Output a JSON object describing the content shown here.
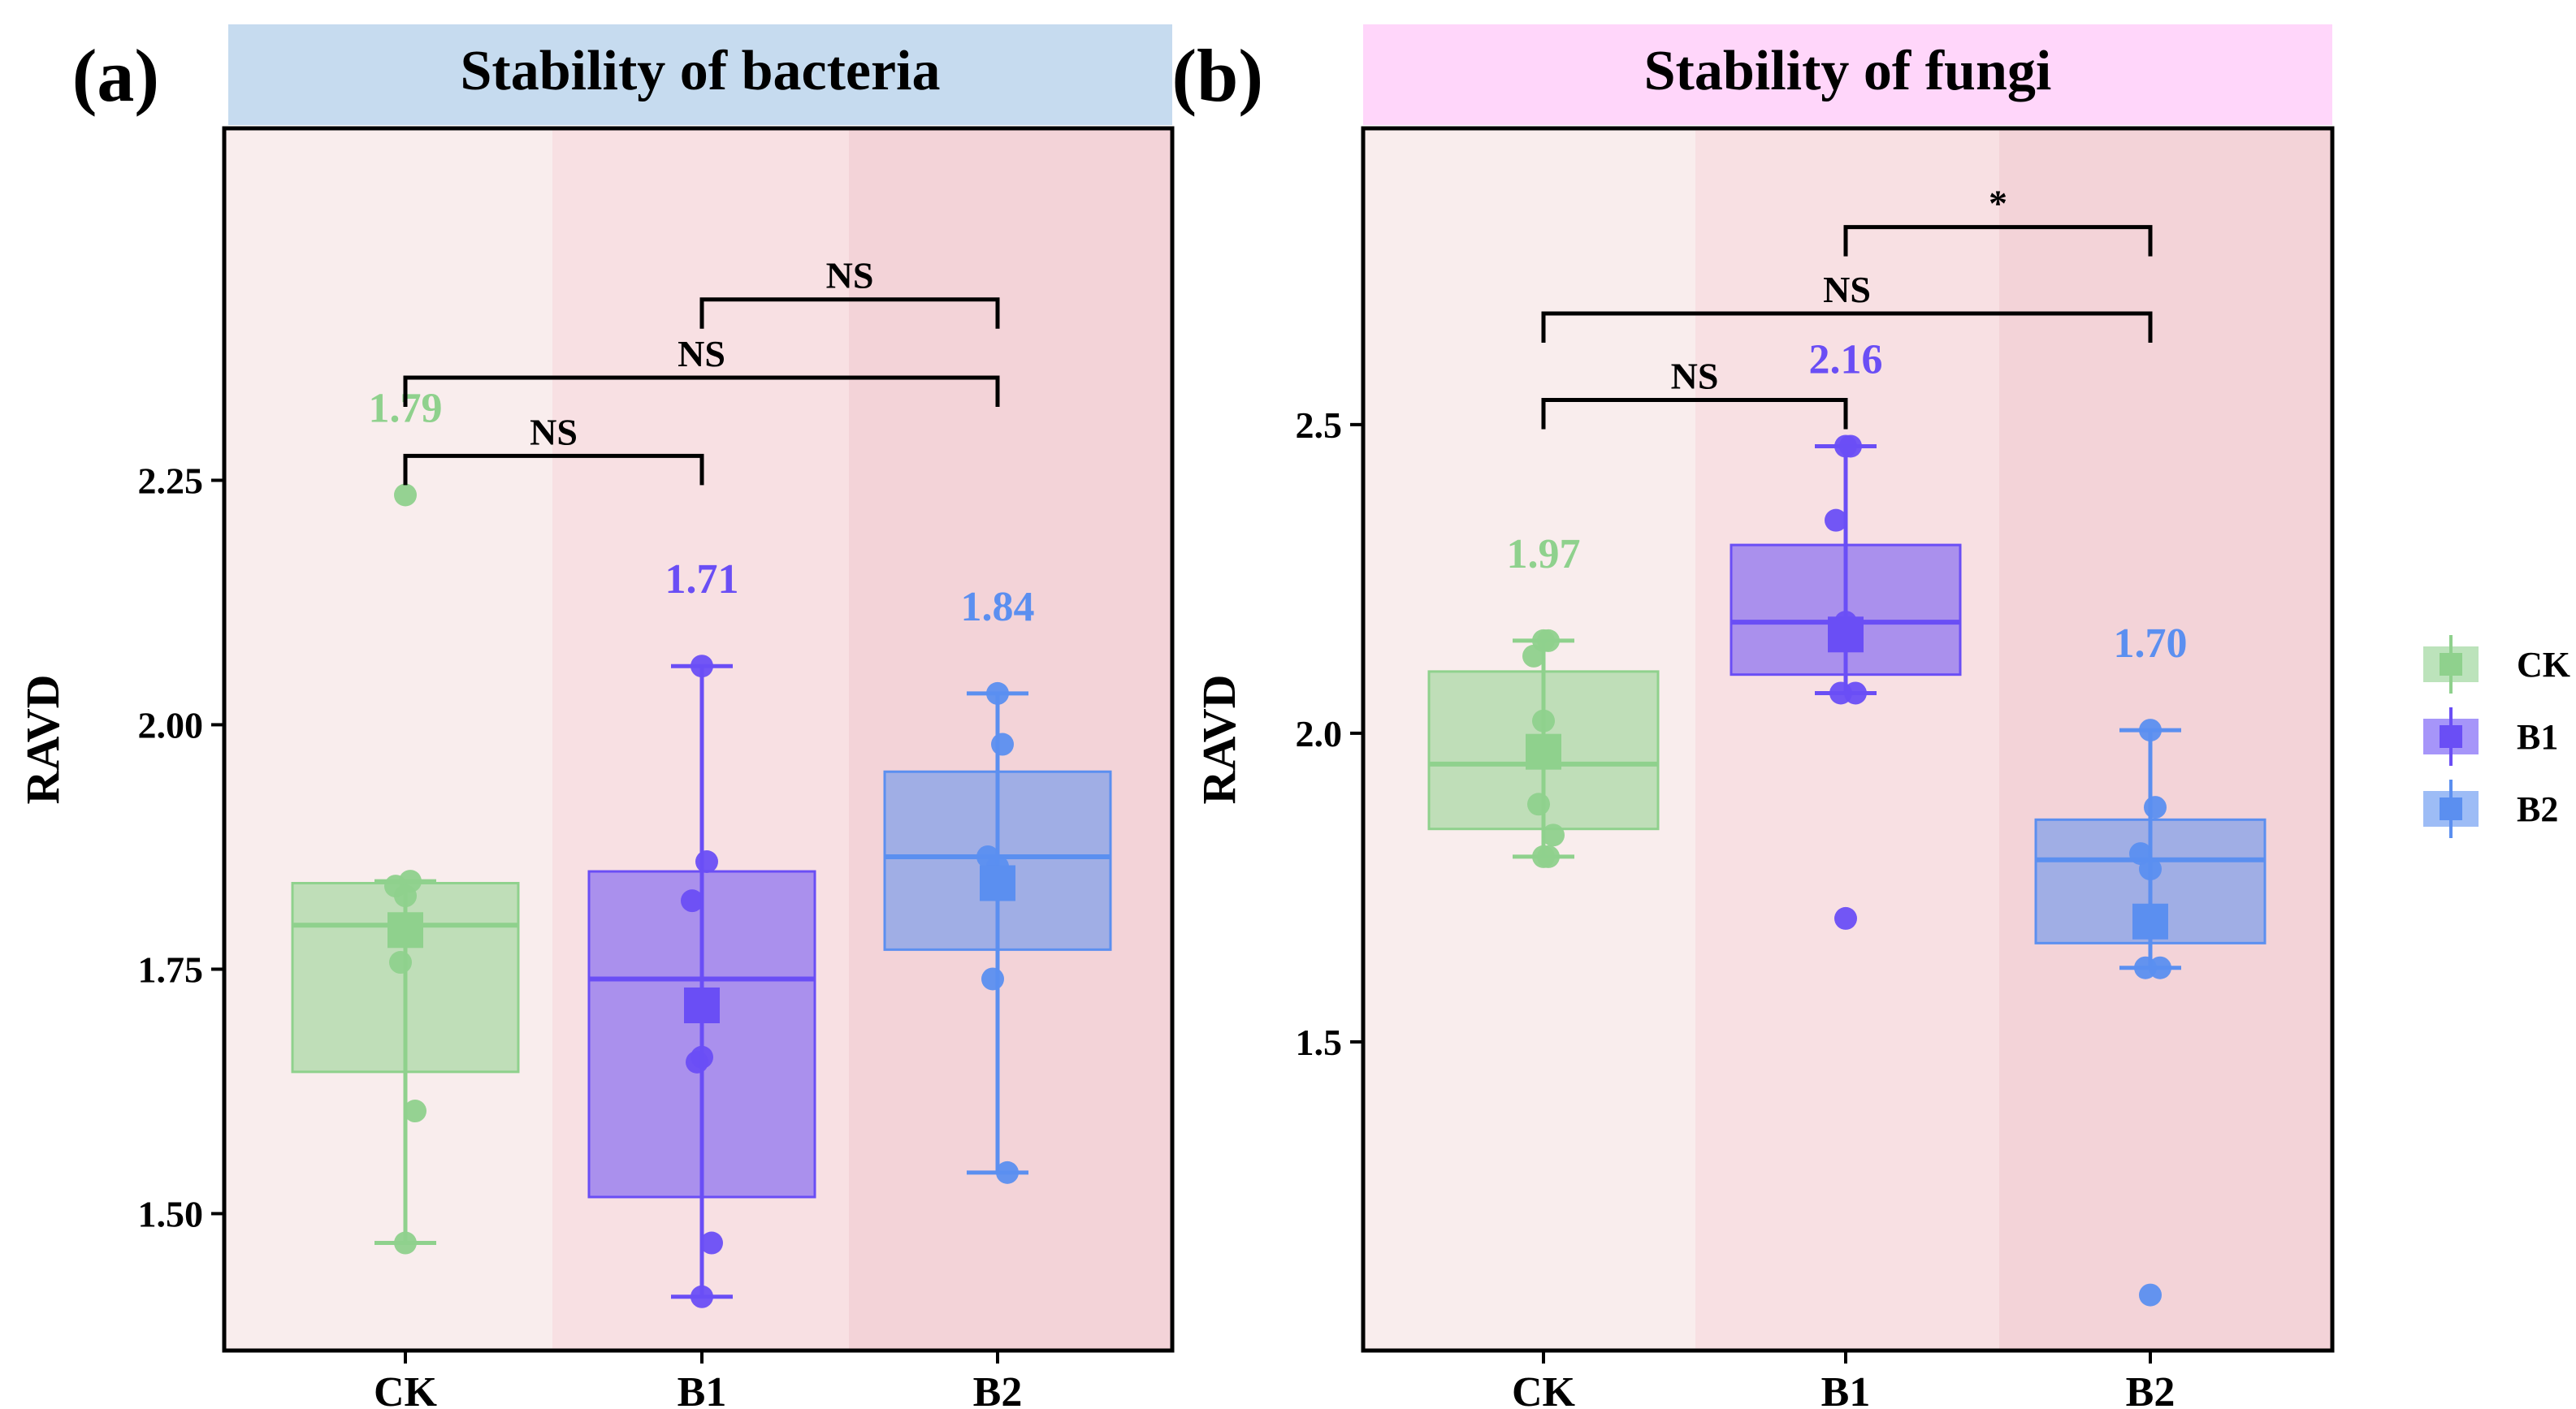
{
  "chart_data": [
    {
      "panel_label": "(a)",
      "title": "Stability of bacteria",
      "title_bg": "#c6dbef",
      "type": "box",
      "ylabel": "RAVD",
      "ylim": [
        1.36,
        2.61
      ],
      "yticks": [
        1.5,
        1.75,
        2.0,
        2.25
      ],
      "ytick_labels": [
        "1.50",
        "1.75",
        "2.00",
        "2.25"
      ],
      "categories": [
        "CK",
        "B1",
        "B2"
      ],
      "band_colors": [
        "#f9eded",
        "#f8e0e3",
        "#f3d3d8"
      ],
      "groups": [
        {
          "name": "CK",
          "color": "#8fd18d",
          "q1": 1.645,
          "median": 1.795,
          "q3": 1.838,
          "whisker_low": 1.47,
          "whisker_high": 1.84,
          "mean": 1.79,
          "mean_label": "1.79",
          "points": [
            2.235,
            1.84,
            1.835,
            1.825,
            1.757,
            1.605,
            1.47
          ],
          "outliers": [
            2.235
          ]
        },
        {
          "name": "B1",
          "color": "#6a4ef5",
          "q1": 1.517,
          "median": 1.74,
          "q3": 1.85,
          "whisker_low": 1.415,
          "whisker_high": 2.06,
          "mean": 1.713,
          "mean_label": "1.71",
          "points": [
            2.06,
            1.86,
            1.82,
            1.66,
            1.655,
            1.47,
            1.415
          ],
          "outliers": []
        },
        {
          "name": "B2",
          "color": "#5b8ff0",
          "q1": 1.77,
          "median": 1.865,
          "q3": 1.952,
          "whisker_low": 1.542,
          "whisker_high": 2.032,
          "mean": 1.838,
          "mean_label": "1.84",
          "points": [
            2.032,
            1.98,
            1.865,
            1.855,
            1.74,
            1.542
          ],
          "outliers": []
        }
      ],
      "comparisons": [
        {
          "from": "CK",
          "to": "B1",
          "label": "NS",
          "y": 2.275
        },
        {
          "from": "CK",
          "to": "B2",
          "label": "NS",
          "y": 2.355
        },
        {
          "from": "B1",
          "to": "B2",
          "label": "NS",
          "y": 2.435
        }
      ]
    },
    {
      "panel_label": "(b)",
      "title": "Stability of fungi",
      "title_bg": "#ffd6fa",
      "type": "box",
      "ylabel": "RAVD",
      "ylim": [
        1.0,
        2.98
      ],
      "yticks": [
        1.5,
        2.0,
        2.5
      ],
      "ytick_labels": [
        "1.5",
        "2.0",
        "2.5"
      ],
      "categories": [
        "CK",
        "B1",
        "B2"
      ],
      "band_colors": [
        "#f9eded",
        "#f8e0e3",
        "#f3d3d8"
      ],
      "groups": [
        {
          "name": "CK",
          "color": "#8fd18d",
          "q1": 1.845,
          "median": 1.95,
          "q3": 2.1,
          "whisker_low": 1.8,
          "whisker_high": 2.15,
          "mean": 1.97,
          "mean_label": "1.97",
          "points": [
            2.15,
            2.15,
            2.125,
            2.02,
            1.885,
            1.835,
            1.8,
            1.8
          ],
          "outliers": []
        },
        {
          "name": "B1",
          "color": "#6a4ef5",
          "q1": 2.095,
          "median": 2.18,
          "q3": 2.305,
          "whisker_low": 2.065,
          "whisker_high": 2.465,
          "mean": 2.16,
          "mean_label": "2.16",
          "points": [
            2.465,
            2.465,
            2.345,
            2.18,
            2.065,
            2.065,
            1.7
          ],
          "outliers": [
            1.7
          ]
        },
        {
          "name": "B2",
          "color": "#5b8ff0",
          "q1": 1.66,
          "median": 1.795,
          "q3": 1.86,
          "whisker_low": 1.62,
          "whisker_high": 2.005,
          "mean": 1.695,
          "mean_label": "1.70",
          "points": [
            2.005,
            1.88,
            1.805,
            1.78,
            1.62,
            1.62,
            1.09
          ],
          "outliers": [
            1.09
          ]
        }
      ],
      "comparisons": [
        {
          "from": "CK",
          "to": "B1",
          "label": "NS",
          "y": 2.54
        },
        {
          "from": "CK",
          "to": "B2",
          "label": "NS",
          "y": 2.68
        },
        {
          "from": "B1",
          "to": "B2",
          "label": "*",
          "y": 2.82
        }
      ]
    }
  ],
  "legend": {
    "placement": "right",
    "items": [
      {
        "label": "CK",
        "color": "#8fd18d"
      },
      {
        "label": "B1",
        "color": "#6a4ef5"
      },
      {
        "label": "B2",
        "color": "#5b8ff0"
      }
    ]
  }
}
